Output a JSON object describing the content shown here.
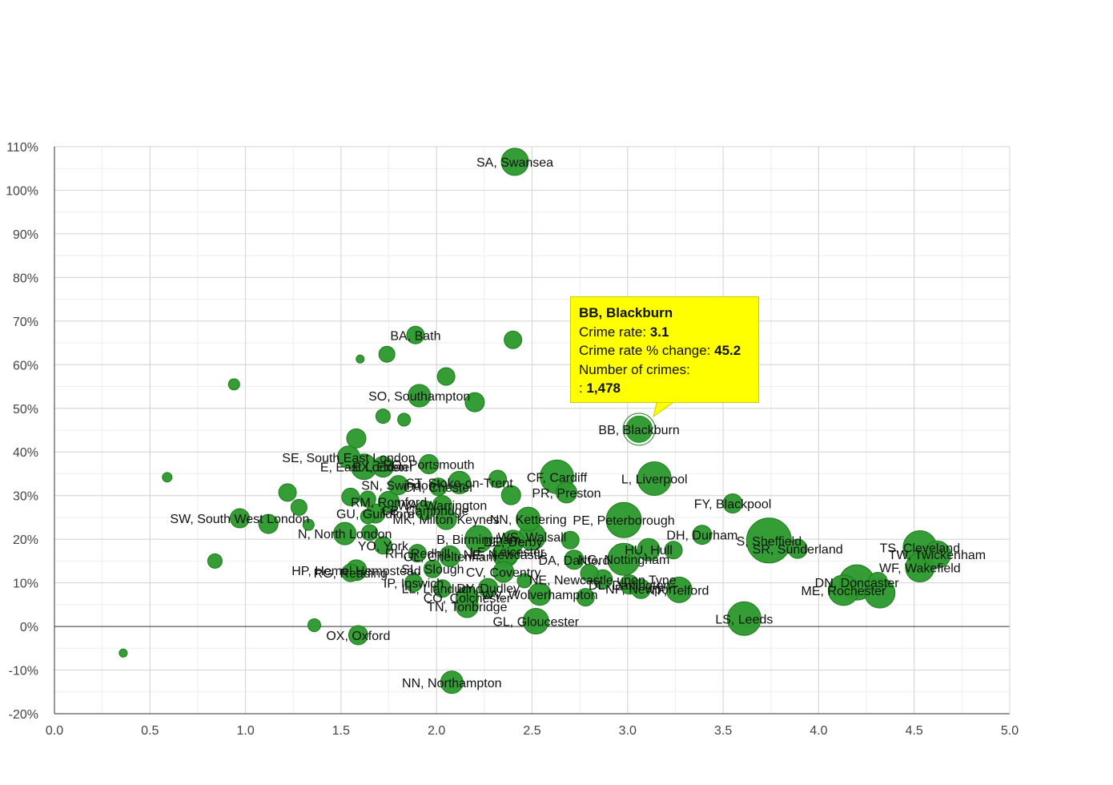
{
  "chart_data": {
    "type": "scatter",
    "title": "",
    "xlabel": "",
    "ylabel": "",
    "xlim": [
      0,
      5
    ],
    "ylim": [
      -20,
      110
    ],
    "x_ticks": [
      "0.0",
      "0.5",
      "1.0",
      "1.5",
      "2.0",
      "2.5",
      "3.0",
      "3.5",
      "4.0",
      "4.5",
      "5.0"
    ],
    "y_ticks": [
      "-20%",
      "-10%",
      "0%",
      "10%",
      "20%",
      "30%",
      "40%",
      "50%",
      "60%",
      "70%",
      "80%",
      "90%",
      "100%",
      "110%"
    ],
    "grid": true,
    "colors": {
      "bubble": "#2e9a2e",
      "bubble_stroke": "#1e7a1e",
      "tooltip_bg": "#ffff00"
    },
    "points": [
      {
        "label": "SA, Swansea",
        "x": 2.41,
        "y": 106.5,
        "size": 17
      },
      {
        "label": "BA, Bath",
        "x": 1.89,
        "y": 66.8,
        "size": 11
      },
      {
        "label": "",
        "x": 2.4,
        "y": 65.7,
        "size": 11
      },
      {
        "label": "",
        "x": 1.6,
        "y": 61.3,
        "size": 5
      },
      {
        "label": "",
        "x": 1.74,
        "y": 62.4,
        "size": 10
      },
      {
        "label": "",
        "x": 2.05,
        "y": 57.3,
        "size": 11
      },
      {
        "label": "",
        "x": 0.94,
        "y": 55.5,
        "size": 7
      },
      {
        "label": "SO, Southampton",
        "x": 1.91,
        "y": 52.9,
        "size": 14
      },
      {
        "label": "",
        "x": 2.2,
        "y": 51.4,
        "size": 12
      },
      {
        "label": "",
        "x": 1.72,
        "y": 48.2,
        "size": 9
      },
      {
        "label": "",
        "x": 1.83,
        "y": 47.4,
        "size": 8
      },
      {
        "label": "BB, Blackburn",
        "x": 3.06,
        "y": 45.2,
        "size": 17
      },
      {
        "label": "",
        "x": 1.58,
        "y": 43.1,
        "size": 12
      },
      {
        "label": "SE, South East London",
        "x": 1.54,
        "y": 38.8,
        "size": 14
      },
      {
        "label": "E, East London",
        "x": 1.62,
        "y": 36.6,
        "size": 16
      },
      {
        "label": "EX, Exeter",
        "x": 1.72,
        "y": 36.6,
        "size": 13
      },
      {
        "label": "PO, Portsmouth",
        "x": 1.96,
        "y": 37.2,
        "size": 12
      },
      {
        "label": "",
        "x": 0.59,
        "y": 34.2,
        "size": 6
      },
      {
        "label": "CF, Cardiff",
        "x": 2.63,
        "y": 34.3,
        "size": 21
      },
      {
        "label": "L, Liverpool",
        "x": 3.14,
        "y": 33.9,
        "size": 21
      },
      {
        "label": "",
        "x": 2.32,
        "y": 33.8,
        "size": 11
      },
      {
        "label": "ST, Stoke-on-Trent",
        "x": 2.12,
        "y": 33.0,
        "size": 14
      },
      {
        "label": "SN, Swindon",
        "x": 1.8,
        "y": 32.4,
        "size": 12
      },
      {
        "label": "CH, Chester",
        "x": 2.01,
        "y": 32.0,
        "size": 11
      },
      {
        "label": "",
        "x": 1.22,
        "y": 30.7,
        "size": 11
      },
      {
        "label": "PR, Preston",
        "x": 2.68,
        "y": 30.7,
        "size": 13
      },
      {
        "label": "",
        "x": 2.39,
        "y": 30.1,
        "size": 12
      },
      {
        "label": "RM, Romford",
        "x": 1.75,
        "y": 28.6,
        "size": 13
      },
      {
        "label": "",
        "x": 1.55,
        "y": 29.7,
        "size": 11
      },
      {
        "label": "",
        "x": 1.64,
        "y": 29.2,
        "size": 10
      },
      {
        "label": "",
        "x": 1.28,
        "y": 27.3,
        "size": 10
      },
      {
        "label": "FY, Blackpool",
        "x": 3.55,
        "y": 28.2,
        "size": 12
      },
      {
        "label": "WA, Warrington",
        "x": 2.03,
        "y": 27.8,
        "size": 12
      },
      {
        "label": "GU, Guildford",
        "x": 1.68,
        "y": 25.9,
        "size": 12
      },
      {
        "label": "CB, Cambridge",
        "x": 1.94,
        "y": 26.6,
        "size": 12
      },
      {
        "label": "",
        "x": 1.64,
        "y": 25.2,
        "size": 9
      },
      {
        "label": "MK, Milton Keynes",
        "x": 2.05,
        "y": 24.6,
        "size": 13
      },
      {
        "label": "NN, Kettering",
        "x": 2.48,
        "y": 24.6,
        "size": 15
      },
      {
        "label": "PE, Peterborough",
        "x": 2.98,
        "y": 24.4,
        "size": 22
      },
      {
        "label": "SW, South West London",
        "x": 0.97,
        "y": 24.8,
        "size": 12
      },
      {
        "label": "",
        "x": 1.12,
        "y": 23.5,
        "size": 12
      },
      {
        "label": "",
        "x": 1.33,
        "y": 23.3,
        "size": 7
      },
      {
        "label": "N, North London",
        "x": 1.52,
        "y": 21.3,
        "size": 14
      },
      {
        "label": "WS, Walsall",
        "x": 2.5,
        "y": 20.6,
        "size": 17
      },
      {
        "label": "",
        "x": 1.65,
        "y": 21.5,
        "size": 10
      },
      {
        "label": "DH, Durham",
        "x": 3.39,
        "y": 21.0,
        "size": 12
      },
      {
        "label": "B, Birmingham",
        "x": 2.22,
        "y": 20.0,
        "size": 17
      },
      {
        "label": "DE, Derby",
        "x": 2.4,
        "y": 19.5,
        "size": 14
      },
      {
        "label": "",
        "x": 2.7,
        "y": 19.8,
        "size": 11
      },
      {
        "label": "S, Sheffield",
        "x": 3.74,
        "y": 19.7,
        "size": 28
      },
      {
        "label": "YO, York",
        "x": 1.72,
        "y": 18.6,
        "size": 11
      },
      {
        "label": "TS, Cleveland",
        "x": 4.53,
        "y": 18.1,
        "size": 21
      },
      {
        "label": "TW, Twickenham",
        "x": 4.62,
        "y": 16.5,
        "size": 17
      },
      {
        "label": "SR, Sunderland",
        "x": 3.89,
        "y": 17.8,
        "size": 12
      },
      {
        "label": "HU, Hull",
        "x": 3.11,
        "y": 17.6,
        "size": 14
      },
      {
        "label": "",
        "x": 3.24,
        "y": 17.5,
        "size": 11
      },
      {
        "label": "RH, Redhill",
        "x": 1.9,
        "y": 16.8,
        "size": 11
      },
      {
        "label": "NE, Newcastle",
        "x": 2.36,
        "y": 16.5,
        "size": 16
      },
      {
        "label": "LE, Leicester",
        "x": 2.37,
        "y": 17.2,
        "size": 16
      },
      {
        "label": "GL, Cheltenham",
        "x": 2.07,
        "y": 16.1,
        "size": 13
      },
      {
        "label": "NG, Nottingham",
        "x": 2.98,
        "y": 15.4,
        "size": 20
      },
      {
        "label": "DA, Dartford",
        "x": 2.72,
        "y": 15.3,
        "size": 12
      },
      {
        "label": "WF, Wakefield",
        "x": 4.53,
        "y": 13.5,
        "size": 18
      },
      {
        "label": "HP, Hemel Hempstead",
        "x": 1.58,
        "y": 12.9,
        "size": 13
      },
      {
        "label": "RG, Reading",
        "x": 1.55,
        "y": 12.3,
        "size": 11
      },
      {
        "label": "SL, Slough",
        "x": 1.98,
        "y": 13.2,
        "size": 11
      },
      {
        "label": "CV, Coventry",
        "x": 2.35,
        "y": 12.5,
        "size": 13
      },
      {
        "label": "",
        "x": 2.8,
        "y": 12.2,
        "size": 11
      },
      {
        "label": "NE, Newcastle upon Tyne",
        "x": 2.87,
        "y": 10.8,
        "size": 12
      },
      {
        "label": "",
        "x": 2.46,
        "y": 10.5,
        "size": 9
      },
      {
        "label": "IP, Ipswich",
        "x": 1.88,
        "y": 10.0,
        "size": 11
      },
      {
        "label": "DN, Doncaster",
        "x": 4.2,
        "y": 10.1,
        "size": 22
      },
      {
        "label": "",
        "x": 4.31,
        "y": 10.2,
        "size": 12
      },
      {
        "label": "DL, Darlington",
        "x": 3.01,
        "y": 9.6,
        "size": 12
      },
      {
        "label": "DY, Dudley",
        "x": 2.27,
        "y": 8.8,
        "size": 12
      },
      {
        "label": "LL, Llandudno",
        "x": 2.03,
        "y": 8.7,
        "size": 11
      },
      {
        "label": "NP, Newport",
        "x": 3.07,
        "y": 8.6,
        "size": 12
      },
      {
        "label": "TF, Telford",
        "x": 3.27,
        "y": 8.4,
        "size": 16
      },
      {
        "label": "ME, Rochester",
        "x": 4.13,
        "y": 8.3,
        "size": 19
      },
      {
        "label": "",
        "x": 4.32,
        "y": 7.7,
        "size": 19
      },
      {
        "label": "WV, Wolverhampton",
        "x": 2.54,
        "y": 7.4,
        "size": 14
      },
      {
        "label": "CO, Colchester",
        "x": 2.16,
        "y": 6.6,
        "size": 14
      },
      {
        "label": "",
        "x": 2.78,
        "y": 6.7,
        "size": 11
      },
      {
        "label": "TN, Tonbridge",
        "x": 2.16,
        "y": 4.6,
        "size": 14
      },
      {
        "label": "LS, Leeds",
        "x": 3.61,
        "y": 1.8,
        "size": 21
      },
      {
        "label": "GL, Gloucester",
        "x": 2.52,
        "y": 1.2,
        "size": 16
      },
      {
        "label": "",
        "x": 0.84,
        "y": 15.0,
        "size": 9
      },
      {
        "label": "",
        "x": 1.36,
        "y": 0.3,
        "size": 8
      },
      {
        "label": "OX, Oxford",
        "x": 1.59,
        "y": -2.0,
        "size": 12
      },
      {
        "label": "",
        "x": 0.36,
        "y": -6.1,
        "size": 5
      },
      {
        "label": "NN, Northampton",
        "x": 2.08,
        "y": -12.8,
        "size": 14
      }
    ]
  },
  "tooltip": {
    "title": "BB, Blackburn",
    "rate_label": "Crime rate: ",
    "rate_value": "3.1",
    "change_label": "Crime rate % change: ",
    "change_value": "45.2",
    "crimes_label": "Number of crimes:",
    "crimes_prefix": ": ",
    "crimes_value": "1,478"
  }
}
